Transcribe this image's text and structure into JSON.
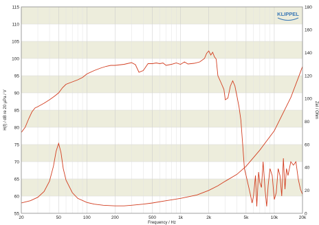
{
  "chart_data": {
    "type": "line",
    "title": "",
    "xlabel": "Frequency / Hz",
    "ylabel_left": "H(f) / dB re 20 μPa / V",
    "ylabel_right": "Zel / Ohm",
    "x_scale": "log",
    "xlim": [
      20,
      20000
    ],
    "ylim_left": [
      55,
      115
    ],
    "ylim_right": [
      0,
      180
    ],
    "x_ticks": [
      20,
      50,
      100,
      200,
      500,
      1000,
      2000,
      5000,
      10000,
      20000
    ],
    "x_tick_labels": [
      "20",
      "50",
      "100",
      "200",
      "500",
      "1k",
      "2k",
      "5k",
      "10k",
      "20k"
    ],
    "y_left_ticks": [
      55,
      60,
      65,
      70,
      75,
      80,
      85,
      90,
      95,
      100,
      105,
      110,
      115
    ],
    "y_right_ticks": [
      0,
      20,
      40,
      60,
      80,
      100,
      120,
      140,
      160,
      180
    ],
    "grid": true,
    "logo_text": "KLIPPEL",
    "colors": {
      "line": "#d23c1e",
      "band": "#ededdc",
      "grid": "#d9d9d9",
      "logo": "#3a78b5"
    },
    "series": [
      {
        "axis": "left",
        "x": [
          20,
          22,
          24,
          26,
          28,
          30,
          35,
          40,
          45,
          50,
          55,
          60,
          70,
          80,
          90,
          100,
          120,
          140,
          160,
          180,
          200,
          250,
          300,
          330,
          360,
          400,
          450,
          500,
          550,
          600,
          650,
          700,
          800,
          900,
          1000,
          1100,
          1200,
          1400,
          1600,
          1800,
          1900,
          2000,
          2100,
          2200,
          2300,
          2400,
          2500,
          2700,
          2900,
          3000,
          3200,
          3400,
          3600,
          3800,
          4000,
          4200,
          4400,
          4600,
          4800,
          5000,
          5200,
          5500,
          5800,
          6000,
          6300,
          6500,
          6800,
          7000,
          7300,
          7600,
          8000,
          8300,
          8600,
          9000,
          9500,
          10000,
          10500,
          11000,
          11500,
          12000,
          12500,
          13000,
          13500,
          14000,
          15000,
          16000,
          17000,
          18000,
          19000,
          20000
        ],
        "y": [
          78.5,
          80,
          82.5,
          84.5,
          85.6,
          86,
          87,
          88,
          89,
          90,
          91.5,
          92.5,
          93.2,
          93.8,
          94.5,
          95.5,
          96.5,
          97.2,
          97.7,
          98,
          98,
          98.3,
          98.8,
          98.2,
          96,
          96.5,
          98.5,
          98.5,
          98.7,
          98.5,
          98.7,
          98,
          98.3,
          98.7,
          98.3,
          99,
          98.4,
          98.6,
          99,
          100,
          101.5,
          102.2,
          101,
          101.8,
          100.5,
          99.8,
          95,
          93,
          91,
          88,
          88.5,
          92,
          93.5,
          92,
          89,
          86,
          82,
          75,
          68,
          66,
          64,
          61,
          58,
          60,
          66,
          57,
          67,
          64,
          62.5,
          70,
          61.5,
          57,
          63,
          68,
          66,
          59,
          61,
          68,
          66,
          60,
          71,
          62,
          68,
          66,
          70,
          69,
          70,
          65,
          62,
          60.5
        ]
      },
      {
        "axis": "right",
        "x": [
          20,
          25,
          30,
          35,
          40,
          44,
          47,
          50,
          53,
          56,
          60,
          70,
          80,
          100,
          120,
          150,
          200,
          250,
          300,
          400,
          500,
          700,
          1000,
          1500,
          2000,
          2500,
          3000,
          4000,
          5000,
          7000,
          10000,
          15000,
          18000,
          20000
        ],
        "y": [
          9,
          11,
          14,
          19,
          28,
          41,
          54,
          61,
          53,
          39,
          29,
          18,
          13,
          9.5,
          8,
          7,
          6.5,
          6.5,
          7,
          8,
          9,
          11,
          13,
          16,
          20,
          24,
          28,
          34,
          41,
          55,
          72,
          101,
          118,
          128
        ]
      }
    ]
  }
}
